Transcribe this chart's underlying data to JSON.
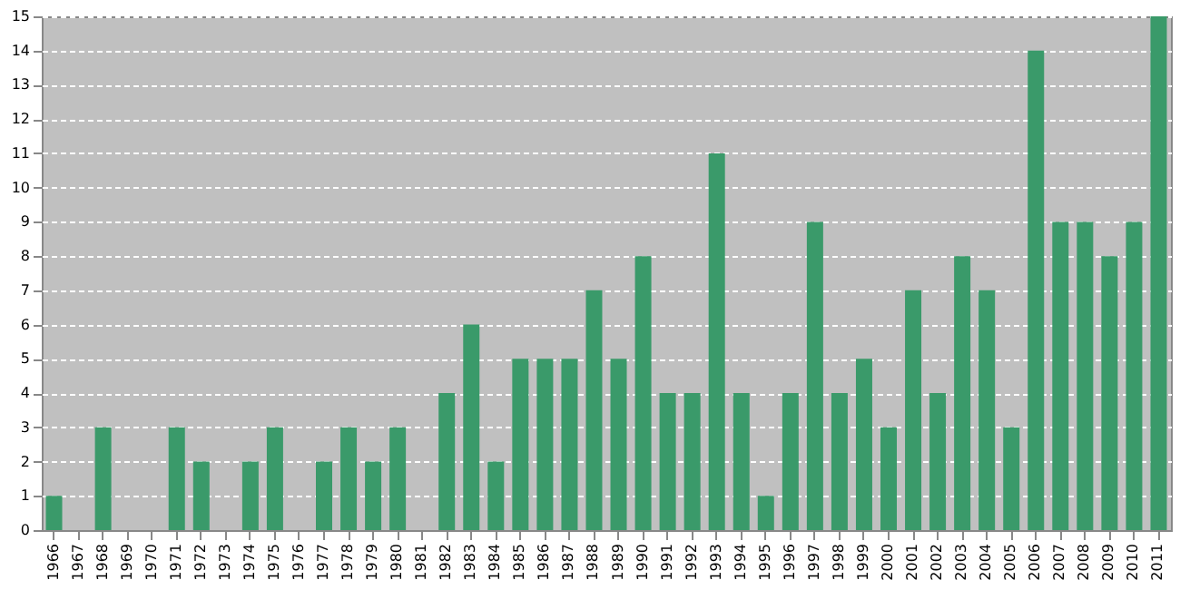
{
  "chart_data": {
    "type": "bar",
    "categories": [
      "1966",
      "1967",
      "1968",
      "1969",
      "1970",
      "1971",
      "1972",
      "1973",
      "1974",
      "1975",
      "1976",
      "1977",
      "1978",
      "1979",
      "1980",
      "1981",
      "1982",
      "1983",
      "1984",
      "1985",
      "1986",
      "1987",
      "1988",
      "1989",
      "1990",
      "1991",
      "1992",
      "1993",
      "1994",
      "1995",
      "1996",
      "1997",
      "1998",
      "1999",
      "2000",
      "2001",
      "2002",
      "2003",
      "2004",
      "2005",
      "2006",
      "2007",
      "2008",
      "2009",
      "2010",
      "2011"
    ],
    "values": [
      1,
      0,
      3,
      0,
      0,
      3,
      2,
      0,
      2,
      3,
      0,
      2,
      3,
      2,
      3,
      0,
      4,
      6,
      2,
      5,
      5,
      5,
      7,
      5,
      8,
      4,
      4,
      11,
      4,
      1,
      4,
      9,
      4,
      5,
      3,
      7,
      4,
      8,
      7,
      3,
      14,
      9,
      9,
      8,
      9,
      15
    ],
    "color": "#3a9a6a",
    "ylim": [
      0,
      15
    ],
    "yticks": [
      0,
      1,
      2,
      3,
      4,
      5,
      6,
      7,
      8,
      9,
      10,
      11,
      12,
      13,
      14,
      15
    ],
    "grid": "y"
  }
}
